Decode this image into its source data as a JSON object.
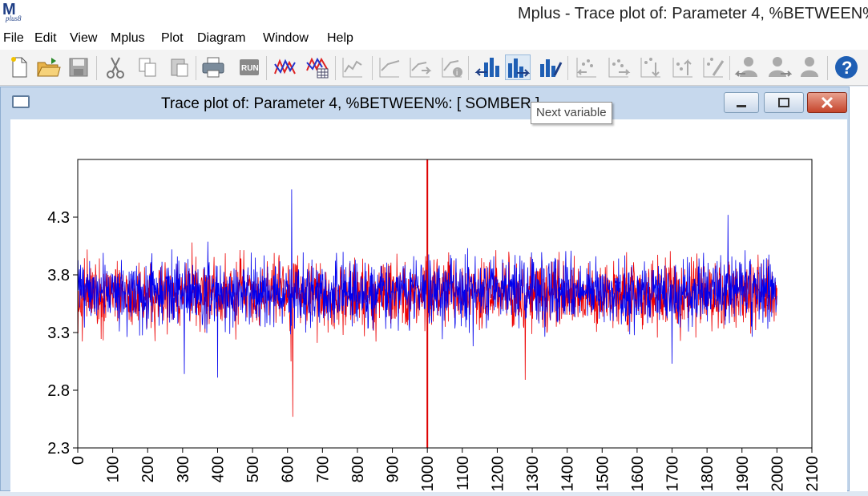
{
  "app": {
    "logo_letter": "M",
    "logo_sub": "plus8",
    "title": "Mplus - Trace plot of: Parameter 4, %BETWEEN%: [ SOMBER ]"
  },
  "menu": [
    "File",
    "Edit",
    "View",
    "Mplus",
    "Plot",
    "Diagram",
    "Window",
    "Help"
  ],
  "toolbar": {
    "buttons": [
      {
        "icon": "new-file-icon"
      },
      {
        "icon": "open-folder-icon"
      },
      {
        "icon": "save-icon"
      },
      {
        "icon": "cut-icon"
      },
      {
        "icon": "copy-icon"
      },
      {
        "icon": "paste-icon"
      },
      {
        "icon": "print-icon"
      },
      {
        "icon": "run-icon"
      },
      {
        "icon": "plot-icon"
      },
      {
        "icon": "plot-table-icon"
      },
      {
        "icon": "line-plot-icon"
      },
      {
        "icon": "line-plot-prev-icon"
      },
      {
        "icon": "line-plot-next-icon"
      },
      {
        "icon": "line-plot-info-icon"
      },
      {
        "icon": "previous-variable-icon"
      },
      {
        "icon": "next-variable-icon"
      },
      {
        "icon": "variable-settings-icon"
      },
      {
        "icon": "scatter-prev-icon"
      },
      {
        "icon": "scatter-next-icon"
      },
      {
        "icon": "scatter-down-icon"
      },
      {
        "icon": "scatter-up-icon"
      },
      {
        "icon": "scatter-edit-icon"
      },
      {
        "icon": "user-prev-icon"
      },
      {
        "icon": "user-next-icon"
      },
      {
        "icon": "user-icon"
      },
      {
        "icon": "help-icon"
      }
    ],
    "active": "next-variable-icon",
    "tooltip": "Next variable"
  },
  "window": {
    "title": "Trace plot of: Parameter 4, %BETWEEN%: [ SOMBER ]"
  },
  "chart_data": {
    "type": "line",
    "title": "",
    "xlabel": "",
    "ylabel": "",
    "xlim": [
      0,
      2100
    ],
    "ylim": [
      2.3,
      4.8
    ],
    "x_ticks": [
      0,
      100,
      200,
      300,
      400,
      500,
      600,
      700,
      800,
      900,
      1000,
      1100,
      1200,
      1300,
      1400,
      1500,
      1600,
      1700,
      1800,
      1900,
      2000,
      2100
    ],
    "y_ticks": [
      2.3,
      2.8,
      3.3,
      3.8,
      4.3
    ],
    "grid": false,
    "vertical_marker": {
      "x": 1000,
      "color": "#dd0000"
    },
    "series": [
      {
        "color": "#ee0000",
        "iterations": 2000,
        "center": 3.63,
        "spread": 0.24,
        "extremes": [
          [
            615,
            2.57
          ],
          [
            1280,
            2.89
          ],
          [
            610,
            3.05
          ]
        ]
      },
      {
        "color": "#0000ee",
        "iterations": 2000,
        "center": 3.65,
        "spread": 0.24,
        "extremes": [
          [
            612,
            4.54
          ],
          [
            305,
            2.94
          ],
          [
            400,
            2.91
          ],
          [
            1700,
            3.03
          ],
          [
            1860,
            4.32
          ]
        ]
      }
    ]
  }
}
